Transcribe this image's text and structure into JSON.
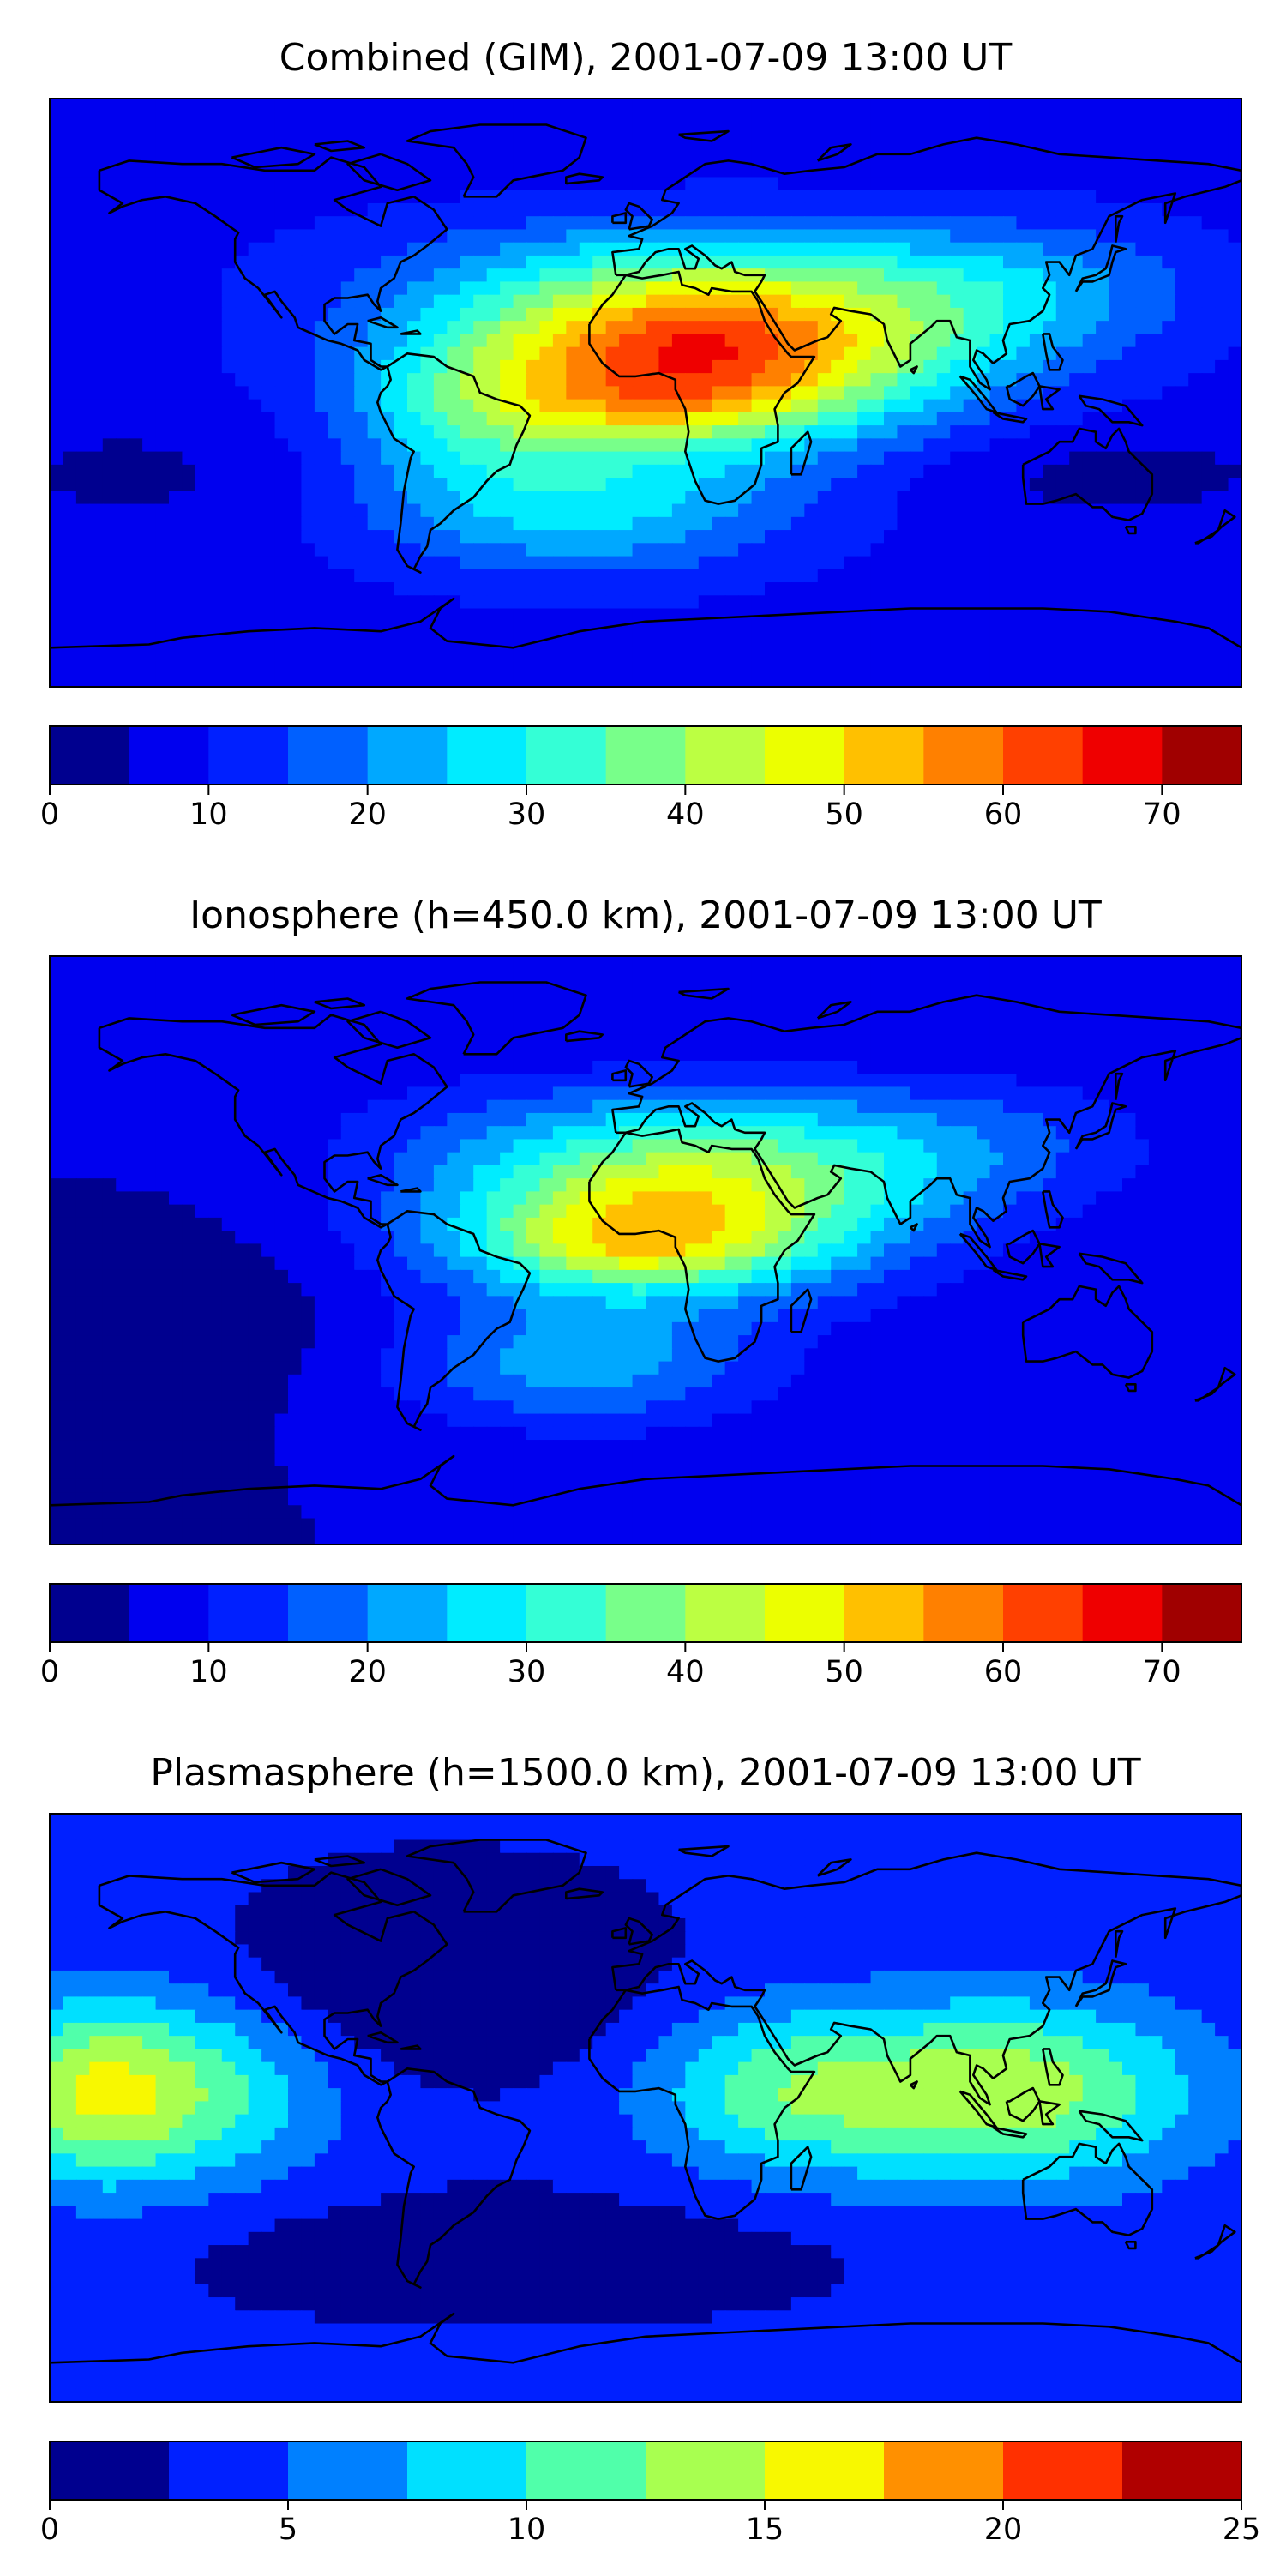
{
  "chart_data": [
    {
      "type": "heatmap",
      "title": "Combined (GIM), 2001-07-09 13:00 UT",
      "colorbar": {
        "levels": [
          0,
          5,
          10,
          15,
          20,
          25,
          30,
          35,
          40,
          45,
          50,
          55,
          60,
          65,
          70,
          75
        ],
        "colors": [
          "#00008f",
          "#0000ef",
          "#0020ff",
          "#0060ff",
          "#00a8ff",
          "#00ecff",
          "#34ffd6",
          "#78ff8a",
          "#bcff42",
          "#ecff00",
          "#ffc000",
          "#ff8000",
          "#ff4000",
          "#ef0000",
          "#a00000"
        ],
        "ticks": [
          0,
          10,
          20,
          30,
          40,
          50,
          60,
          70
        ],
        "tick_labels": [
          "0",
          "10",
          "20",
          "30",
          "40",
          "50",
          "60",
          "70"
        ]
      },
      "field": {
        "base": 8,
        "blobs": [
          {
            "lon": 10,
            "lat": 10,
            "slon": 55,
            "slat": 18,
            "amp": 47
          },
          {
            "lon": 0,
            "lat": -5,
            "slon": 35,
            "slat": 8,
            "amp": 10
          },
          {
            "lon": 30,
            "lat": 20,
            "slon": 45,
            "slat": 14,
            "amp": 12
          },
          {
            "lon": 110,
            "lat": 30,
            "slon": 40,
            "slat": 15,
            "amp": 12
          },
          {
            "lon": 15,
            "lat": 40,
            "slon": 70,
            "slat": 12,
            "amp": 10
          },
          {
            "lon": -20,
            "lat": -35,
            "slon": 45,
            "slat": 15,
            "amp": 18
          },
          {
            "lon": -55,
            "lat": -10,
            "slon": 25,
            "slat": 15,
            "amp": 10
          },
          {
            "lon": 140,
            "lat": -25,
            "slon": 40,
            "slat": 10,
            "amp": -5
          },
          {
            "lon": -150,
            "lat": -25,
            "slon": 40,
            "slat": 15,
            "amp": -4
          }
        ]
      }
    },
    {
      "type": "heatmap",
      "title": "Ionosphere  (h=450.0 km), 2001-07-09 13:00 UT",
      "colorbar": {
        "levels": [
          0,
          5,
          10,
          15,
          20,
          25,
          30,
          35,
          40,
          45,
          50,
          55,
          60,
          65,
          70,
          75
        ],
        "colors": [
          "#00008f",
          "#0000ef",
          "#0020ff",
          "#0060ff",
          "#00a8ff",
          "#00ecff",
          "#34ffd6",
          "#78ff8a",
          "#bcff42",
          "#ecff00",
          "#ffc000",
          "#ff8000",
          "#ff4000",
          "#ef0000",
          "#a00000"
        ],
        "ticks": [
          0,
          10,
          20,
          30,
          40,
          50,
          60,
          70
        ],
        "tick_labels": [
          "0",
          "10",
          "20",
          "30",
          "40",
          "50",
          "60",
          "70"
        ]
      },
      "field": {
        "base": 5,
        "blobs": [
          {
            "lon": 5,
            "lat": 10,
            "slon": 50,
            "slat": 17,
            "amp": 40
          },
          {
            "lon": -5,
            "lat": 0,
            "slon": 30,
            "slat": 8,
            "amp": 12
          },
          {
            "lon": 30,
            "lat": 25,
            "slon": 45,
            "slat": 12,
            "amp": 8
          },
          {
            "lon": 100,
            "lat": 30,
            "slon": 40,
            "slat": 15,
            "amp": 8
          },
          {
            "lon": 10,
            "lat": 40,
            "slon": 70,
            "slat": 12,
            "amp": 10
          },
          {
            "lon": -20,
            "lat": -35,
            "slon": 40,
            "slat": 14,
            "amp": 17
          },
          {
            "lon": -140,
            "lat": -20,
            "slon": 40,
            "slat": 18,
            "amp": -4
          }
        ]
      }
    },
    {
      "type": "heatmap",
      "title": "Plasmasphere (h=1500.0 km), 2001-07-09 13:00 UT",
      "colorbar": {
        "levels": [
          0,
          2.5,
          5,
          7.5,
          10,
          12.5,
          15,
          17.5,
          20,
          22.5,
          25
        ],
        "colors": [
          "#00008f",
          "#0020ff",
          "#0080ff",
          "#00e0ff",
          "#50ffaa",
          "#a8ff50",
          "#f8f800",
          "#ff9000",
          "#ff3000",
          "#b00000"
        ],
        "ticks": [
          0,
          5,
          10,
          15,
          20,
          25
        ],
        "tick_labels": [
          "0",
          "5",
          "10",
          "15",
          "20",
          "25"
        ]
      },
      "field": {
        "base": 3,
        "blobs": [
          {
            "lon": 110,
            "lat": 5,
            "slon": 40,
            "slat": 20,
            "amp": 11
          },
          {
            "lon": 40,
            "lat": 5,
            "slon": 30,
            "slat": 18,
            "amp": 7
          },
          {
            "lon": -150,
            "lat": 5,
            "slon": 35,
            "slat": 20,
            "amp": 10
          },
          {
            "lon": -170,
            "lat": 5,
            "slon": 20,
            "slat": 20,
            "amp": 4
          },
          {
            "lon": -60,
            "lat": 40,
            "slon": 40,
            "slat": 20,
            "amp": -4
          },
          {
            "lon": -40,
            "lat": -45,
            "slon": 60,
            "slat": 12,
            "amp": -3
          }
        ]
      }
    }
  ],
  "map": {
    "lon_range": [
      -180,
      180
    ],
    "lat_range": [
      -90,
      90
    ],
    "coastline_color": "#000000"
  }
}
